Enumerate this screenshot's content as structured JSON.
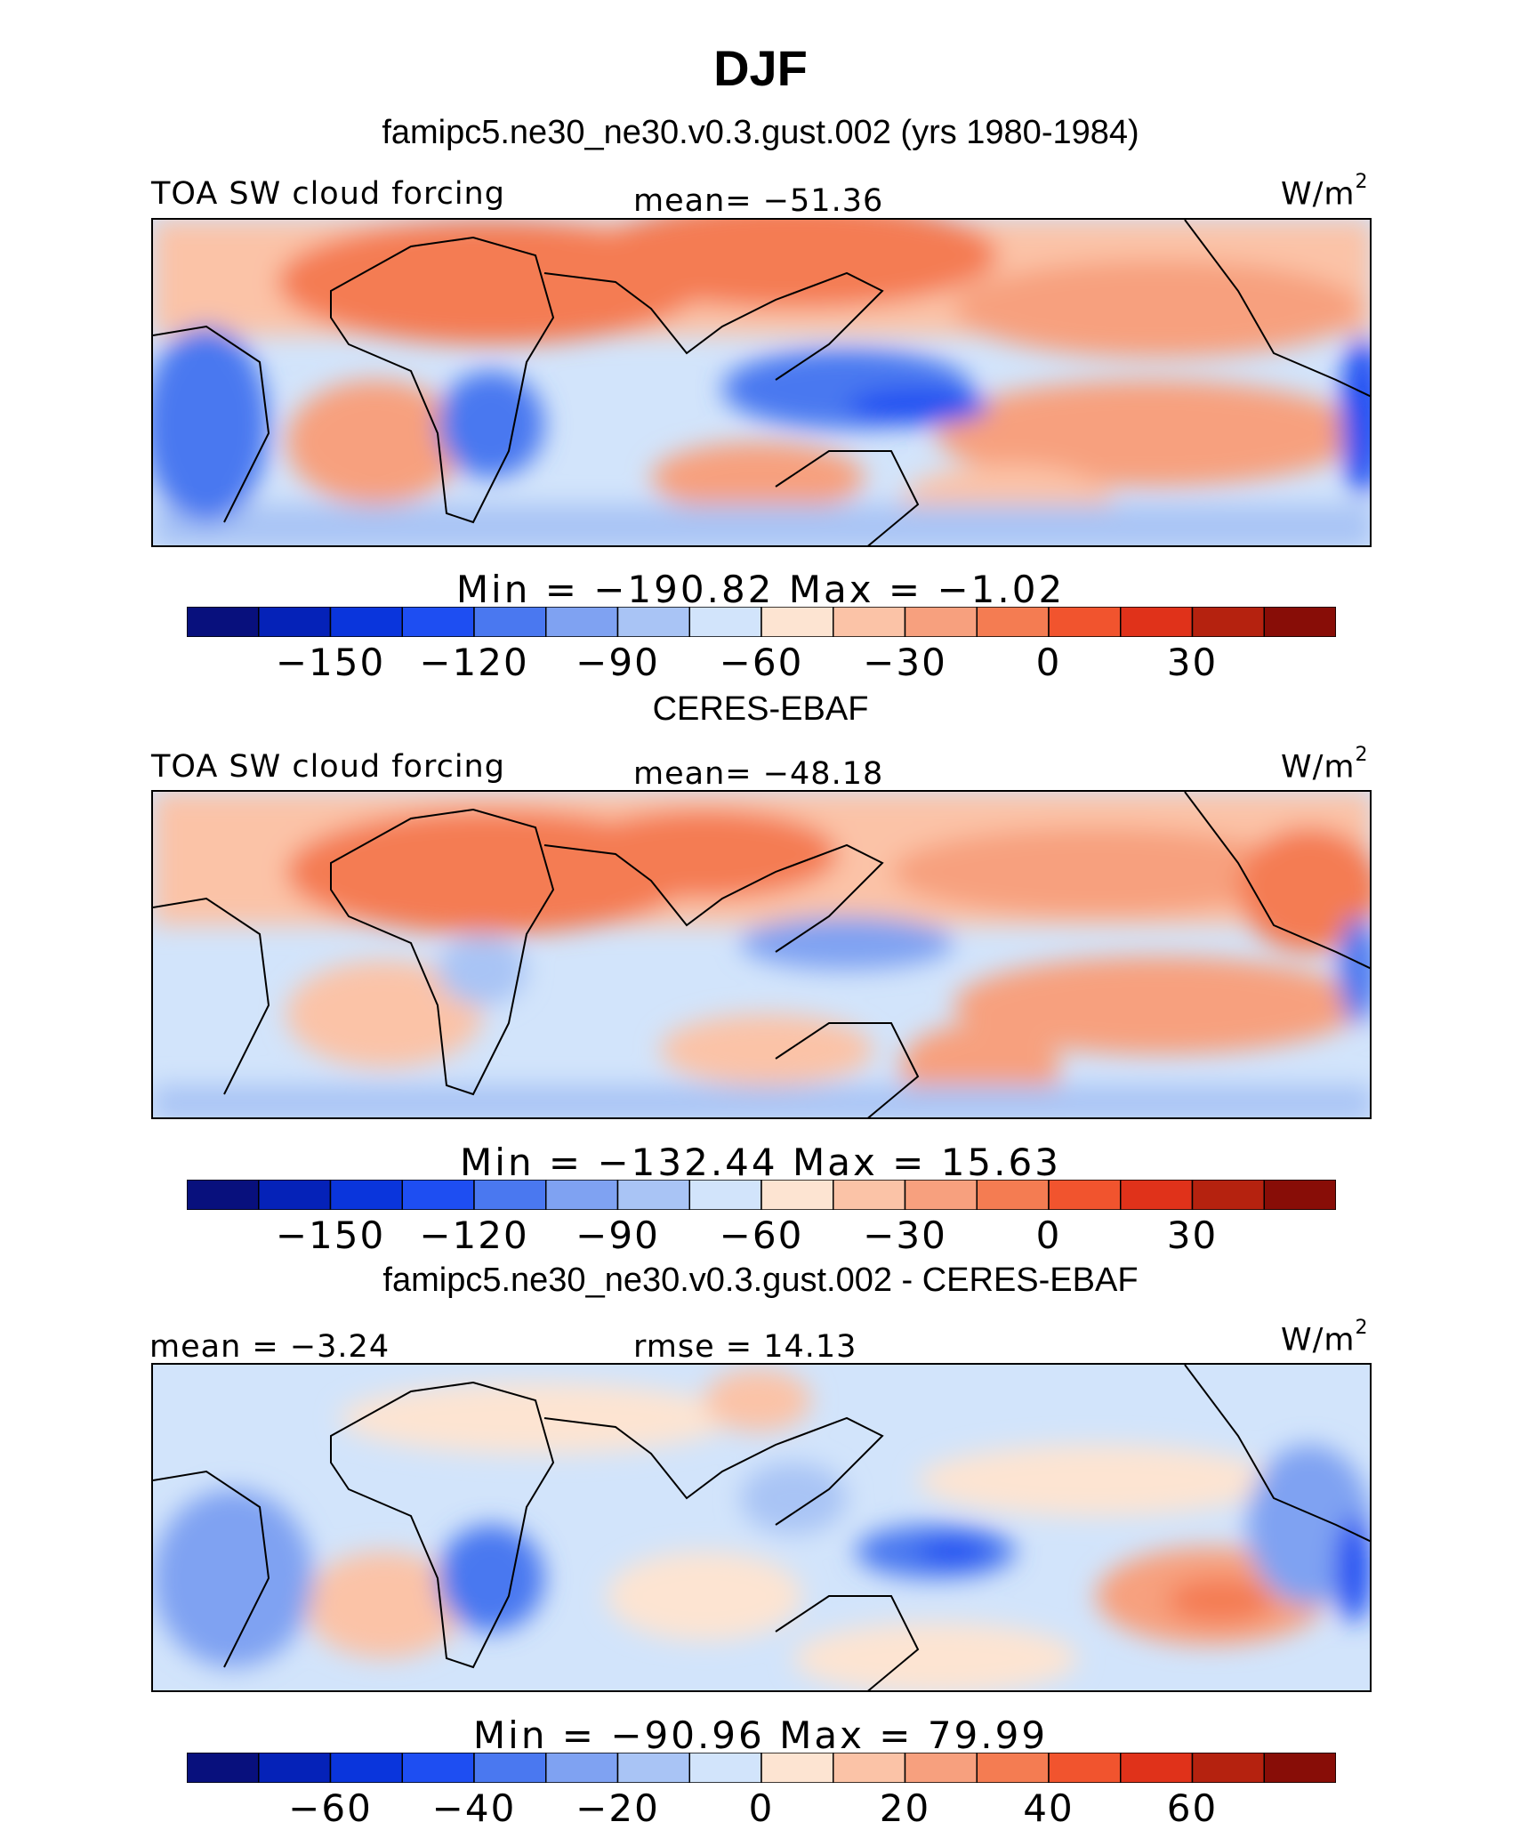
{
  "title": "DJF",
  "panels": [
    {
      "id": "model",
      "subtitle": "famipc5.ne30_ne30.v0.3.gust.002 (yrs 1980-1984)",
      "left_label": "TOA SW cloud forcing",
      "center_label": "mean= −51.36",
      "units": "W/m",
      "units_sup": "2",
      "minmax": "Min = −190.82 Max =  −1.02",
      "colorbar": {
        "colors": [
          "#08107d",
          "#0522b8",
          "#0a35dc",
          "#1e4ef2",
          "#4a78f0",
          "#7fa2f2",
          "#a9c4f5",
          "#d2e4fb",
          "#fde4d2",
          "#fbc3a7",
          "#f7a07e",
          "#f47c52",
          "#f1542e",
          "#e0321a",
          "#b5220f",
          "#880d07"
        ],
        "tick_labels": [
          "−150",
          "−120",
          "−90",
          "−60",
          "−30",
          "0",
          "30"
        ],
        "tick_boundaries": [
          2,
          4,
          6,
          8,
          10,
          12,
          14
        ]
      }
    },
    {
      "id": "obs",
      "subtitle": "CERES-EBAF",
      "left_label": "TOA SW cloud forcing",
      "center_label": "mean= −48.18",
      "units": "W/m",
      "units_sup": "2",
      "minmax": "Min = −132.44 Max =   15.63",
      "colorbar": {
        "colors": [
          "#08107d",
          "#0522b8",
          "#0a35dc",
          "#1e4ef2",
          "#4a78f0",
          "#7fa2f2",
          "#a9c4f5",
          "#d2e4fb",
          "#fde4d2",
          "#fbc3a7",
          "#f7a07e",
          "#f47c52",
          "#f1542e",
          "#e0321a",
          "#b5220f",
          "#880d07"
        ],
        "tick_labels": [
          "−150",
          "−120",
          "−90",
          "−60",
          "−30",
          "0",
          "30"
        ],
        "tick_boundaries": [
          2,
          4,
          6,
          8,
          10,
          12,
          14
        ]
      }
    },
    {
      "id": "diff",
      "subtitle": "famipc5.ne30_ne30.v0.3.gust.002 - CERES-EBAF",
      "left_label": "mean =  −3.24",
      "center_label": "rmse =  14.13",
      "units": "W/m",
      "units_sup": "2",
      "minmax": "Min = −90.96 Max =  79.99",
      "colorbar": {
        "colors": [
          "#08107d",
          "#0522b8",
          "#0a35dc",
          "#1e4ef2",
          "#4a78f0",
          "#7fa2f2",
          "#a9c4f5",
          "#d2e4fb",
          "#fde4d2",
          "#fbc3a7",
          "#f7a07e",
          "#f47c52",
          "#f1542e",
          "#e0321a",
          "#b5220f",
          "#880d07"
        ],
        "tick_labels": [
          "−60",
          "−40",
          "−20",
          "0",
          "20",
          "40",
          "60"
        ],
        "tick_boundaries": [
          2,
          4,
          6,
          8,
          10,
          12,
          14
        ]
      }
    }
  ]
}
